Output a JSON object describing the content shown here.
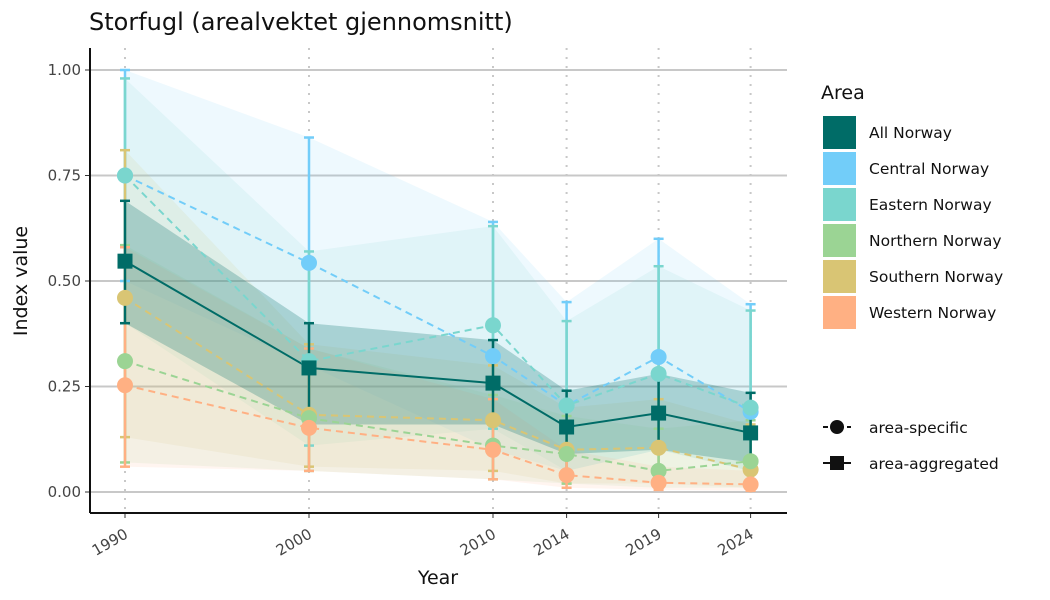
{
  "chart_data": {
    "type": "line",
    "title": "Storfugl (arealvektet gjennomsnitt)",
    "xlabel": "Year",
    "ylabel": "Index value",
    "x": [
      1990,
      2000,
      2010,
      2014,
      2019,
      2024
    ],
    "ylim": [
      0,
      1
    ],
    "yticks": [
      "0.00",
      "0.25",
      "0.50",
      "0.75",
      "1.00"
    ],
    "ytick_values": [
      0,
      0.25,
      0.5,
      0.75,
      1.0
    ],
    "xtick_labels": [
      "1990",
      "2000",
      "2010",
      "2014",
      "2019",
      "2024"
    ],
    "grid": "horizontal major + dotted vertical at years",
    "legend_title": "Area",
    "legend_position": "right",
    "series": [
      {
        "name": "Central Norway",
        "color": "#72CDF9",
        "kind": "area-specific",
        "values": [
          0.75,
          0.543,
          0.322,
          0.205,
          0.32,
          0.19
        ],
        "upper": [
          1.0,
          0.84,
          0.64,
          0.45,
          0.6,
          0.445
        ],
        "lower": [
          0.5,
          0.3,
          0.1,
          0.05,
          0.1,
          0.05
        ]
      },
      {
        "name": "Eastern Norway",
        "color": "#7AD6CE",
        "kind": "area-specific",
        "values": [
          0.75,
          0.31,
          0.395,
          0.205,
          0.28,
          0.2
        ],
        "upper": [
          0.98,
          0.57,
          0.63,
          0.405,
          0.535,
          0.43
        ],
        "lower": [
          0.4,
          0.11,
          0.15,
          0.05,
          0.1,
          0.05
        ]
      },
      {
        "name": "Southern Norway",
        "color": "#D9C574",
        "kind": "area-specific",
        "values": [
          0.46,
          0.183,
          0.17,
          0.1,
          0.105,
          0.053
        ],
        "upper": [
          0.81,
          0.35,
          0.3,
          0.2,
          0.22,
          0.16
        ],
        "lower": [
          0.13,
          0.06,
          0.05,
          0.02,
          0.02,
          0.01
        ]
      },
      {
        "name": "Northern Norway",
        "color": "#9BD494",
        "kind": "area-specific",
        "values": [
          0.31,
          0.175,
          0.11,
          0.09,
          0.05,
          0.073
        ],
        "upper": [
          0.585,
          0.34,
          0.23,
          0.18,
          0.15,
          0.17
        ],
        "lower": [
          0.07,
          0.05,
          0.03,
          0.02,
          0.01,
          0.01
        ]
      },
      {
        "name": "Western Norway",
        "color": "#FFB083",
        "kind": "area-specific",
        "values": [
          0.253,
          0.152,
          0.1,
          0.04,
          0.022,
          0.018
        ],
        "upper": [
          0.58,
          0.34,
          0.22,
          0.1,
          0.06,
          0.05
        ],
        "lower": [
          0.06,
          0.05,
          0.03,
          0.01,
          0.005,
          0.003
        ]
      },
      {
        "name": "All Norway",
        "color": "#006C67",
        "kind": "area-aggregated",
        "values": [
          0.547,
          0.294,
          0.258,
          0.154,
          0.187,
          0.14
        ],
        "upper": [
          0.69,
          0.4,
          0.36,
          0.24,
          0.28,
          0.235
        ],
        "lower": [
          0.4,
          0.16,
          0.16,
          0.09,
          0.1,
          0.07
        ]
      }
    ],
    "legend_entries": [
      "All Norway",
      "Central Norway",
      "Eastern Norway",
      "Northern Norway",
      "Southern Norway",
      "Western Norway"
    ],
    "legend_colors": [
      "#006C67",
      "#72CDF9",
      "#7AD6CE",
      "#9BD494",
      "#D9C574",
      "#FFB083"
    ],
    "shape_legend": [
      "area-specific",
      "area-aggregated"
    ]
  }
}
